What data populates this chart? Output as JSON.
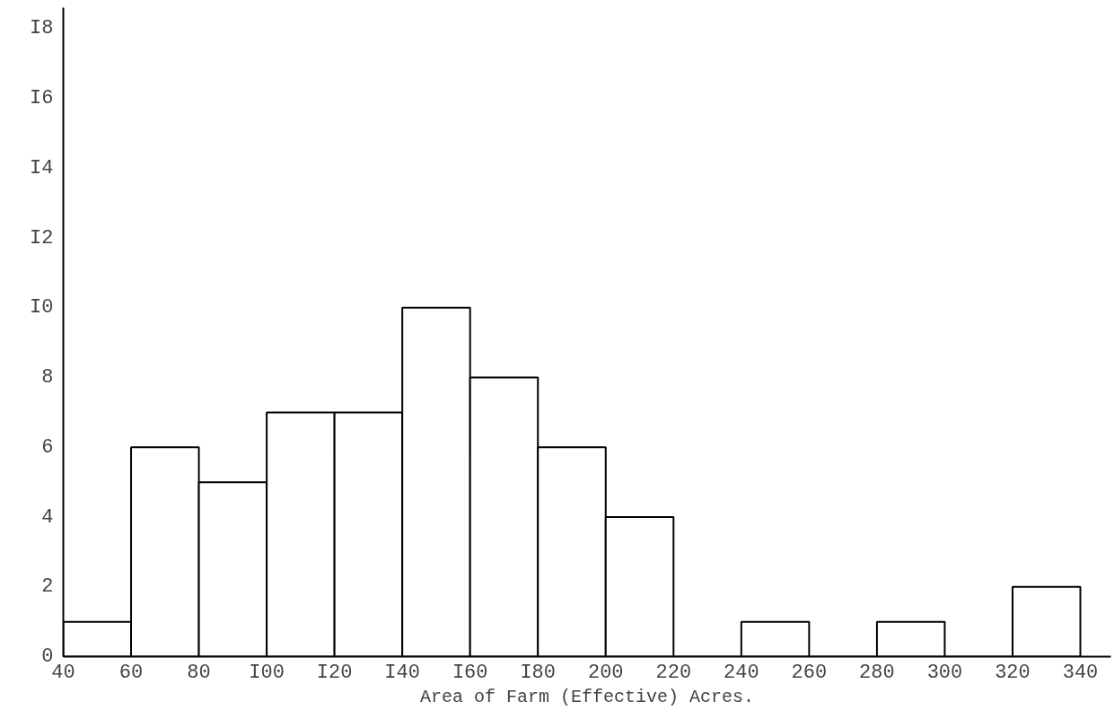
{
  "chart_data": {
    "type": "histogram",
    "xlabel": "Area of Farm (Effective) Acres.",
    "bins": [
      40,
      60,
      80,
      100,
      120,
      140,
      160,
      180,
      200,
      220,
      240,
      260,
      280,
      300,
      320,
      340
    ],
    "values": [
      1,
      6,
      5,
      7,
      7,
      10,
      8,
      6,
      4,
      0,
      1,
      0,
      1,
      0,
      2
    ],
    "color": "#000000",
    "xlim": [
      40,
      349
    ],
    "ylim": [
      0,
      18.6
    ],
    "xticks": [
      {
        "value": 40,
        "label": "40"
      },
      60,
      80,
      {
        "value": 100,
        "label": "I00"
      },
      {
        "value": 120,
        "label": "I20"
      },
      {
        "value": 140,
        "label": "I40"
      },
      {
        "value": 160,
        "label": "I60"
      },
      {
        "value": 180,
        "label": "I80"
      },
      200,
      220,
      240,
      260,
      280,
      300,
      320,
      340
    ],
    "yticks": [
      0,
      2,
      4,
      6,
      8,
      {
        "value": 10,
        "label": "I0"
      },
      {
        "value": 12,
        "label": "I2"
      },
      {
        "value": 14,
        "label": "I4"
      },
      {
        "value": 16,
        "label": "I6"
      },
      {
        "value": 18,
        "label": "I8"
      }
    ],
    "grid": false
  }
}
